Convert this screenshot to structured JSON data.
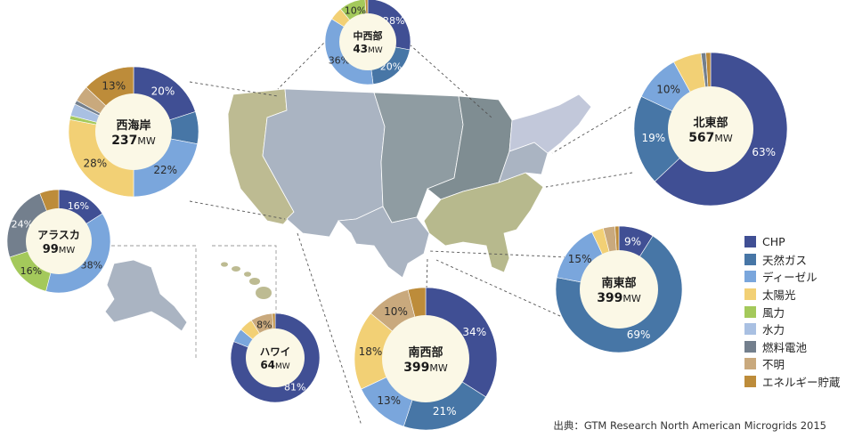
{
  "colors": {
    "chp": "#404f94",
    "natural_gas": "#4776a6",
    "diesel": "#7aa6dc",
    "solar": "#f2d075",
    "wind": "#a4c95b",
    "hydro": "#a9c0e2",
    "fuel_cell": "#737f8d",
    "unknown": "#c9a97d",
    "storage": "#bd8c3a",
    "center_fill": "#fbf8e6",
    "map_west_green": "#bdbb92",
    "map_plains": "#8f9ca2",
    "map_central_dark": "#7f8d92",
    "map_southwest": "#aab4c2",
    "map_southeast": "#b7b98d",
    "map_northeast": "#c2c8da"
  },
  "legend": [
    {
      "key": "chp",
      "label": "CHP"
    },
    {
      "key": "natural_gas",
      "label": "天然ガス"
    },
    {
      "key": "diesel",
      "label": "ディーゼル"
    },
    {
      "key": "solar",
      "label": "太陽光"
    },
    {
      "key": "wind",
      "label": "風力"
    },
    {
      "key": "hydro",
      "label": "水力"
    },
    {
      "key": "fuel_cell",
      "label": "燃料電池"
    },
    {
      "key": "unknown",
      "label": "不明"
    },
    {
      "key": "storage",
      "label": "エネルギー貯蔵"
    }
  ],
  "source": "出典：GTM Research North American Microgrids 2015",
  "chart_data": {
    "type": "pie",
    "unit": "%",
    "regions": [
      {
        "id": "west-coast",
        "name": "西海岸",
        "capacity": "237",
        "unit": "MW",
        "slices": [
          {
            "key": "chp",
            "value": 20,
            "label": "20%"
          },
          {
            "key": "natural_gas",
            "value": 8,
            "label": ""
          },
          {
            "key": "diesel",
            "value": 22,
            "label": "22%"
          },
          {
            "key": "solar",
            "value": 28,
            "label": "28%"
          },
          {
            "key": "wind",
            "value": 1,
            "label": ""
          },
          {
            "key": "hydro",
            "value": 3,
            "label": ""
          },
          {
            "key": "fuel_cell",
            "value": 1,
            "label": ""
          },
          {
            "key": "unknown",
            "value": 4,
            "label": ""
          },
          {
            "key": "storage",
            "value": 13,
            "label": "13%"
          }
        ]
      },
      {
        "id": "midwest",
        "name": "中西部",
        "capacity": "43",
        "unit": "MW",
        "slices": [
          {
            "key": "chp",
            "value": 28,
            "label": "28%"
          },
          {
            "key": "natural_gas",
            "value": 20,
            "label": "20%"
          },
          {
            "key": "diesel",
            "value": 36,
            "label": "36%"
          },
          {
            "key": "solar",
            "value": 5,
            "label": ""
          },
          {
            "key": "wind",
            "value": 10,
            "label": "10%"
          },
          {
            "key": "storage",
            "value": 1,
            "label": ""
          }
        ]
      },
      {
        "id": "northeast",
        "name": "北東部",
        "capacity": "567",
        "unit": "MW",
        "slices": [
          {
            "key": "chp",
            "value": 63,
            "label": "63%"
          },
          {
            "key": "natural_gas",
            "value": 19,
            "label": "19%"
          },
          {
            "key": "diesel",
            "value": 10,
            "label": "10%"
          },
          {
            "key": "solar",
            "value": 6,
            "label": ""
          },
          {
            "key": "fuel_cell",
            "value": 1,
            "label": ""
          },
          {
            "key": "storage",
            "value": 1,
            "label": ""
          }
        ]
      },
      {
        "id": "alaska",
        "name": "アラスカ",
        "capacity": "99",
        "unit": "MW",
        "slices": [
          {
            "key": "chp",
            "value": 16,
            "label": "16%"
          },
          {
            "key": "diesel",
            "value": 38,
            "label": "38%"
          },
          {
            "key": "wind",
            "value": 16,
            "label": "16%"
          },
          {
            "key": "fuel_cell",
            "value": 24,
            "label": "24%"
          },
          {
            "key": "storage",
            "value": 6,
            "label": ""
          }
        ]
      },
      {
        "id": "southeast",
        "name": "南東部",
        "capacity": "399",
        "unit": "MW",
        "slices": [
          {
            "key": "chp",
            "value": 9,
            "label": "9%"
          },
          {
            "key": "natural_gas",
            "value": 69,
            "label": "69%"
          },
          {
            "key": "diesel",
            "value": 15,
            "label": "15%"
          },
          {
            "key": "solar",
            "value": 3,
            "label": ""
          },
          {
            "key": "unknown",
            "value": 3,
            "label": ""
          },
          {
            "key": "storage",
            "value": 1,
            "label": ""
          }
        ]
      },
      {
        "id": "hawaii",
        "name": "ハワイ",
        "capacity": "64",
        "unit": "MW",
        "slices": [
          {
            "key": "chp",
            "value": 81,
            "label": "81%"
          },
          {
            "key": "diesel",
            "value": 5,
            "label": ""
          },
          {
            "key": "solar",
            "value": 5,
            "label": ""
          },
          {
            "key": "unknown",
            "value": 8,
            "label": "8%"
          },
          {
            "key": "storage",
            "value": 1,
            "label": ""
          }
        ]
      },
      {
        "id": "southwest",
        "name": "南西部",
        "capacity": "399",
        "unit": "MW",
        "slices": [
          {
            "key": "chp",
            "value": 34,
            "label": "34%"
          },
          {
            "key": "natural_gas",
            "value": 21,
            "label": "21%"
          },
          {
            "key": "diesel",
            "value": 13,
            "label": "13%"
          },
          {
            "key": "solar",
            "value": 18,
            "label": "18%"
          },
          {
            "key": "unknown",
            "value": 10,
            "label": "10%"
          },
          {
            "key": "storage",
            "value": 4,
            "label": ""
          }
        ]
      }
    ]
  }
}
